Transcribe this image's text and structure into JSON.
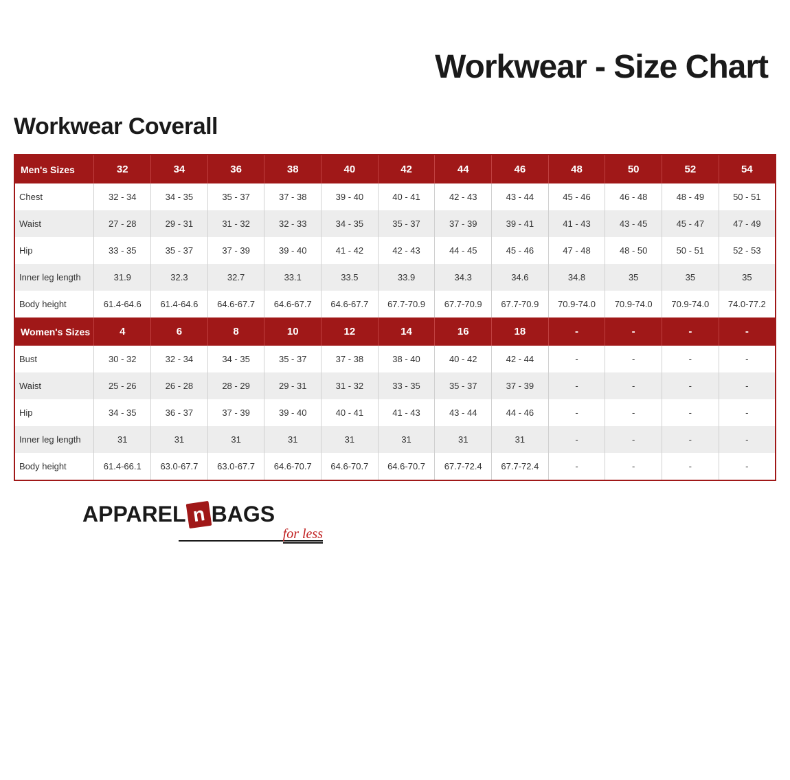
{
  "main_title": "Workwear - Size Chart",
  "sub_title": "Workwear Coverall",
  "colors": {
    "header_bg": "#a01818",
    "header_text": "#ffffff",
    "row_odd": "#ffffff",
    "row_even": "#ededed",
    "border": "#a01818",
    "cell_border": "#d0d0d0"
  },
  "table": {
    "mens_header_label": "Men's  Sizes",
    "mens_sizes": [
      "32",
      "34",
      "36",
      "38",
      "40",
      "42",
      "44",
      "46",
      "48",
      "50",
      "52",
      "54"
    ],
    "mens_rows": [
      {
        "label": "Chest",
        "values": [
          "32 - 34",
          "34 - 35",
          "35 - 37",
          "37 - 38",
          "39 - 40",
          "40 - 41",
          "42 - 43",
          "43 - 44",
          "45 - 46",
          "46 - 48",
          "48 - 49",
          "50 - 51"
        ]
      },
      {
        "label": "Waist",
        "values": [
          "27 - 28",
          "29 - 31",
          "31 - 32",
          "32 - 33",
          "34 - 35",
          "35 - 37",
          "37 - 39",
          "39 - 41",
          "41 - 43",
          "43 - 45",
          "45 - 47",
          "47 - 49"
        ]
      },
      {
        "label": "Hip",
        "values": [
          "33 - 35",
          "35 - 37",
          "37 - 39",
          "39 - 40",
          "41 - 42",
          "42 - 43",
          "44 - 45",
          "45 - 46",
          "47 - 48",
          "48 - 50",
          "50 - 51",
          "52 - 53"
        ]
      },
      {
        "label": "Inner leg length",
        "values": [
          "31.9",
          "32.3",
          "32.7",
          "33.1",
          "33.5",
          "33.9",
          "34.3",
          "34.6",
          "34.8",
          "35",
          "35",
          "35"
        ]
      },
      {
        "label": "Body height",
        "values": [
          "61.4-64.6",
          "61.4-64.6",
          "64.6-67.7",
          "64.6-67.7",
          "64.6-67.7",
          "67.7-70.9",
          "67.7-70.9",
          "67.7-70.9",
          "70.9-74.0",
          "70.9-74.0",
          "70.9-74.0",
          "74.0-77.2"
        ]
      }
    ],
    "womens_header_label": "Women's  Sizes",
    "womens_sizes": [
      "4",
      "6",
      "8",
      "10",
      "12",
      "14",
      "16",
      "18",
      "-",
      "-",
      "-",
      "-"
    ],
    "womens_rows": [
      {
        "label": "Bust",
        "values": [
          "30 - 32",
          "32 - 34",
          "34 - 35",
          "35 - 37",
          "37 - 38",
          "38 - 40",
          "40 - 42",
          "42 - 44",
          "-",
          "-",
          "-",
          "-"
        ]
      },
      {
        "label": "Waist",
        "values": [
          "25 - 26",
          "26 - 28",
          "28 - 29",
          "29 - 31",
          "31 - 32",
          "33 - 35",
          "35 - 37",
          "37 - 39",
          "-",
          "-",
          "-",
          "-"
        ]
      },
      {
        "label": "Hip",
        "values": [
          "34 - 35",
          "36 - 37",
          "37 - 39",
          "39 - 40",
          "40 - 41",
          "41 - 43",
          "43 - 44",
          "44 - 46",
          "-",
          "-",
          "-",
          "-"
        ]
      },
      {
        "label": "Inner leg length",
        "values": [
          "31",
          "31",
          "31",
          "31",
          "31",
          "31",
          "31",
          "31",
          "-",
          "-",
          "-",
          "-"
        ]
      },
      {
        "label": "Body height",
        "values": [
          "61.4-66.1",
          "63.0-67.7",
          "63.0-67.7",
          "64.6-70.7",
          "64.6-70.7",
          "64.6-70.7",
          "67.7-72.4",
          "67.7-72.4",
          "-",
          "-",
          "-",
          "-"
        ]
      }
    ]
  },
  "logo": {
    "part1": "Apparel",
    "n": "n",
    "part2": "Bags",
    "tagline": "for less"
  }
}
